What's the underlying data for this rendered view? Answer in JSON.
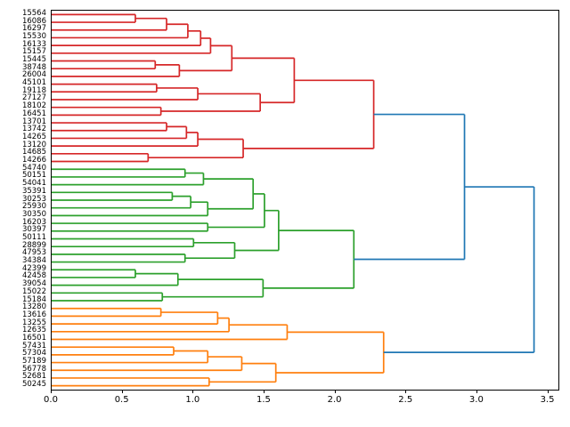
{
  "figure": {
    "background": "#ffffff",
    "axis_color": "#000000"
  },
  "chart_data": {
    "type": "dendrogram",
    "orientation": "left-to-right",
    "title": "",
    "xlabel": "",
    "ylabel": "",
    "grid": false,
    "x_ticks": [
      {
        "value": 0.0,
        "label": "0.0"
      },
      {
        "value": 0.5,
        "label": "0.5"
      },
      {
        "value": 1.0,
        "label": "1.0"
      },
      {
        "value": 1.5,
        "label": "1.5"
      },
      {
        "value": 2.0,
        "label": "2.0"
      },
      {
        "value": 2.5,
        "label": "2.5"
      },
      {
        "value": 3.0,
        "label": "3.0"
      },
      {
        "value": 3.5,
        "label": "3.5"
      }
    ],
    "x_max": 3.572,
    "colors": {
      "red": "#d62728",
      "green": "#2ca02c",
      "orange": "#ff7f0e",
      "blue": "#1f77b4"
    },
    "leaves": [
      {
        "id": "L1",
        "label": "15564",
        "cluster": "red"
      },
      {
        "id": "L2",
        "label": "16086",
        "cluster": "red"
      },
      {
        "id": "L3",
        "label": "16297",
        "cluster": "red"
      },
      {
        "id": "L4",
        "label": "15530",
        "cluster": "red"
      },
      {
        "id": "L5",
        "label": "16133",
        "cluster": "red"
      },
      {
        "id": "L6",
        "label": "15157",
        "cluster": "red"
      },
      {
        "id": "L7",
        "label": "15445",
        "cluster": "red"
      },
      {
        "id": "L8",
        "label": "38748",
        "cluster": "red"
      },
      {
        "id": "L9",
        "label": "26004",
        "cluster": "red"
      },
      {
        "id": "L10",
        "label": "45101",
        "cluster": "red"
      },
      {
        "id": "L11",
        "label": "19118",
        "cluster": "red"
      },
      {
        "id": "L12",
        "label": "27127",
        "cluster": "red"
      },
      {
        "id": "L13",
        "label": "18102",
        "cluster": "red"
      },
      {
        "id": "L14",
        "label": "16451",
        "cluster": "red"
      },
      {
        "id": "L15",
        "label": "13701",
        "cluster": "red"
      },
      {
        "id": "L16",
        "label": "13742",
        "cluster": "red"
      },
      {
        "id": "L17",
        "label": "14265",
        "cluster": "red"
      },
      {
        "id": "L18",
        "label": "13120",
        "cluster": "red"
      },
      {
        "id": "L19",
        "label": "14685",
        "cluster": "red"
      },
      {
        "id": "L20",
        "label": "14266",
        "cluster": "red"
      },
      {
        "id": "L21",
        "label": "54740",
        "cluster": "green"
      },
      {
        "id": "L22",
        "label": "50151",
        "cluster": "green"
      },
      {
        "id": "L23",
        "label": "54041",
        "cluster": "green"
      },
      {
        "id": "L24",
        "label": "35391",
        "cluster": "green"
      },
      {
        "id": "L25",
        "label": "30253",
        "cluster": "green"
      },
      {
        "id": "L26",
        "label": "25930",
        "cluster": "green"
      },
      {
        "id": "L27",
        "label": "30350",
        "cluster": "green"
      },
      {
        "id": "L28",
        "label": "16203",
        "cluster": "green"
      },
      {
        "id": "L29",
        "label": "30397",
        "cluster": "green"
      },
      {
        "id": "L30",
        "label": "50111",
        "cluster": "green"
      },
      {
        "id": "L31",
        "label": "28899",
        "cluster": "green"
      },
      {
        "id": "L32",
        "label": "47953",
        "cluster": "green"
      },
      {
        "id": "L33",
        "label": "34384",
        "cluster": "green"
      },
      {
        "id": "L34",
        "label": "42399",
        "cluster": "green"
      },
      {
        "id": "L35",
        "label": "42458",
        "cluster": "green"
      },
      {
        "id": "L36",
        "label": "39054",
        "cluster": "green"
      },
      {
        "id": "L37",
        "label": "15022",
        "cluster": "green"
      },
      {
        "id": "L38",
        "label": "15184",
        "cluster": "green"
      },
      {
        "id": "L39",
        "label": "13280",
        "cluster": "orange"
      },
      {
        "id": "L40",
        "label": "13616",
        "cluster": "orange"
      },
      {
        "id": "L41",
        "label": "13255",
        "cluster": "orange"
      },
      {
        "id": "L42",
        "label": "12635",
        "cluster": "orange"
      },
      {
        "id": "L43",
        "label": "16501",
        "cluster": "orange"
      },
      {
        "id": "L44",
        "label": "57431",
        "cluster": "orange"
      },
      {
        "id": "L45",
        "label": "57304",
        "cluster": "orange"
      },
      {
        "id": "L46",
        "label": "57189",
        "cluster": "orange"
      },
      {
        "id": "L47",
        "label": "56778",
        "cluster": "orange"
      },
      {
        "id": "L48",
        "label": "52681",
        "cluster": "orange"
      },
      {
        "id": "L49",
        "label": "50245",
        "cluster": "orange"
      }
    ],
    "links": [
      {
        "id": "R1",
        "a": "L1",
        "b": "L2",
        "h": 0.59,
        "c": "red"
      },
      {
        "id": "R2",
        "a": "R1",
        "b": "L3",
        "h": 0.81,
        "c": "red"
      },
      {
        "id": "R3",
        "a": "R2",
        "b": "L4",
        "h": 0.96,
        "c": "red"
      },
      {
        "id": "R4",
        "a": "R3",
        "b": "L5",
        "h": 1.05,
        "c": "red"
      },
      {
        "id": "R5",
        "a": "R4",
        "b": "L6",
        "h": 1.12,
        "c": "red"
      },
      {
        "id": "R6",
        "a": "L7",
        "b": "L8",
        "h": 0.73,
        "c": "red"
      },
      {
        "id": "R7",
        "a": "R6",
        "b": "L9",
        "h": 0.9,
        "c": "red"
      },
      {
        "id": "R8",
        "a": "R5",
        "b": "R7",
        "h": 1.27,
        "c": "red"
      },
      {
        "id": "R9",
        "a": "L10",
        "b": "L11",
        "h": 0.74,
        "c": "red"
      },
      {
        "id": "R10",
        "a": "R9",
        "b": "L12",
        "h": 1.03,
        "c": "red"
      },
      {
        "id": "R11",
        "a": "L13",
        "b": "L14",
        "h": 0.77,
        "c": "red"
      },
      {
        "id": "R12",
        "a": "R10",
        "b": "R11",
        "h": 1.47,
        "c": "red"
      },
      {
        "id": "R13",
        "a": "R8",
        "b": "R12",
        "h": 1.71,
        "c": "red"
      },
      {
        "id": "R14",
        "a": "L15",
        "b": "L16",
        "h": 0.81,
        "c": "red"
      },
      {
        "id": "R15",
        "a": "R14",
        "b": "L17",
        "h": 0.95,
        "c": "red"
      },
      {
        "id": "R16",
        "a": "R15",
        "b": "L18",
        "h": 1.03,
        "c": "red"
      },
      {
        "id": "R17",
        "a": "L19",
        "b": "L20",
        "h": 0.68,
        "c": "red"
      },
      {
        "id": "R18",
        "a": "R16",
        "b": "R17",
        "h": 1.35,
        "c": "red"
      },
      {
        "id": "R19",
        "a": "R13",
        "b": "R18",
        "h": 2.27,
        "c": "red"
      },
      {
        "id": "G1",
        "a": "L21",
        "b": "L22",
        "h": 0.94,
        "c": "green"
      },
      {
        "id": "G2",
        "a": "G1",
        "b": "L23",
        "h": 1.07,
        "c": "green"
      },
      {
        "id": "G3",
        "a": "L24",
        "b": "L25",
        "h": 0.85,
        "c": "green"
      },
      {
        "id": "G4",
        "a": "G3",
        "b": "L26",
        "h": 0.98,
        "c": "green"
      },
      {
        "id": "G5",
        "a": "G4",
        "b": "L27",
        "h": 1.1,
        "c": "green"
      },
      {
        "id": "G6",
        "a": "G2",
        "b": "G5",
        "h": 1.42,
        "c": "green"
      },
      {
        "id": "G7",
        "a": "L28",
        "b": "L29",
        "h": 1.1,
        "c": "green"
      },
      {
        "id": "G8",
        "a": "G6",
        "b": "G7",
        "h": 1.5,
        "c": "green"
      },
      {
        "id": "G9",
        "a": "L30",
        "b": "L31",
        "h": 1.0,
        "c": "green"
      },
      {
        "id": "G10",
        "a": "L32",
        "b": "L33",
        "h": 0.94,
        "c": "green"
      },
      {
        "id": "G11",
        "a": "G9",
        "b": "G10",
        "h": 1.29,
        "c": "green"
      },
      {
        "id": "G12",
        "a": "G8",
        "b": "G11",
        "h": 1.6,
        "c": "green"
      },
      {
        "id": "G13",
        "a": "L34",
        "b": "L35",
        "h": 0.59,
        "c": "green"
      },
      {
        "id": "G14",
        "a": "G13",
        "b": "L36",
        "h": 0.89,
        "c": "green"
      },
      {
        "id": "G15",
        "a": "L37",
        "b": "L38",
        "h": 0.78,
        "c": "green"
      },
      {
        "id": "G16",
        "a": "G14",
        "b": "G15",
        "h": 1.49,
        "c": "green"
      },
      {
        "id": "G17",
        "a": "G12",
        "b": "G16",
        "h": 2.13,
        "c": "green"
      },
      {
        "id": "O1",
        "a": "L39",
        "b": "L40",
        "h": 0.77,
        "c": "orange"
      },
      {
        "id": "O2",
        "a": "O1",
        "b": "L41",
        "h": 1.17,
        "c": "orange"
      },
      {
        "id": "O3",
        "a": "O2",
        "b": "L42",
        "h": 1.25,
        "c": "orange"
      },
      {
        "id": "O4",
        "a": "O3",
        "b": "L43",
        "h": 1.66,
        "c": "orange"
      },
      {
        "id": "O5",
        "a": "L44",
        "b": "L45",
        "h": 0.86,
        "c": "orange"
      },
      {
        "id": "O6",
        "a": "O5",
        "b": "L46",
        "h": 1.1,
        "c": "orange"
      },
      {
        "id": "O7",
        "a": "O6",
        "b": "L47",
        "h": 1.34,
        "c": "orange"
      },
      {
        "id": "O8",
        "a": "L48",
        "b": "L49",
        "h": 1.11,
        "c": "orange"
      },
      {
        "id": "O9",
        "a": "O7",
        "b": "O8",
        "h": 1.58,
        "c": "orange"
      },
      {
        "id": "O10",
        "a": "O4",
        "b": "O9",
        "h": 2.34,
        "c": "orange"
      },
      {
        "id": "B1",
        "a": "R19",
        "b": "G17",
        "h": 2.91,
        "c": "blue"
      },
      {
        "id": "B2",
        "a": "B1",
        "b": "O10",
        "h": 3.4,
        "c": "blue"
      }
    ]
  }
}
